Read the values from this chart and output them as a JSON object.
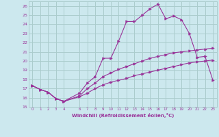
{
  "xlabel": "Windchill (Refroidissement éolien,°C)",
  "background_color": "#cce8ee",
  "grid_color": "#aacccc",
  "line_color": "#993399",
  "xlim": [
    -0.5,
    23.5
  ],
  "ylim": [
    15,
    26.5
  ],
  "xticks": [
    0,
    1,
    2,
    3,
    4,
    6,
    7,
    8,
    9,
    10,
    11,
    12,
    13,
    14,
    15,
    16,
    17,
    18,
    19,
    20,
    21,
    22,
    23
  ],
  "yticks": [
    15,
    16,
    17,
    18,
    19,
    20,
    21,
    22,
    23,
    24,
    25,
    26
  ],
  "line1_x": [
    0,
    1,
    2,
    3,
    4,
    6,
    7,
    8,
    9,
    10,
    11,
    12,
    13,
    14,
    15,
    16,
    17,
    18,
    19,
    20,
    21,
    22,
    23
  ],
  "line1_y": [
    17.3,
    16.9,
    16.6,
    15.9,
    15.6,
    16.1,
    16.5,
    17.0,
    17.4,
    17.7,
    17.9,
    18.1,
    18.4,
    18.6,
    18.8,
    19.0,
    19.2,
    19.4,
    19.6,
    19.8,
    19.9,
    20.0,
    20.1
  ],
  "line2_x": [
    0,
    1,
    2,
    3,
    4,
    6,
    7,
    8,
    9,
    10,
    11,
    12,
    13,
    14,
    15,
    16,
    17,
    18,
    19,
    20,
    21,
    22,
    23
  ],
  "line2_y": [
    17.3,
    16.9,
    16.6,
    15.9,
    15.6,
    16.5,
    17.6,
    18.3,
    20.3,
    20.3,
    22.2,
    24.3,
    24.3,
    25.0,
    25.7,
    26.2,
    24.6,
    24.9,
    24.5,
    23.0,
    20.4,
    20.5,
    17.9
  ],
  "line3_x": [
    0,
    1,
    2,
    3,
    4,
    6,
    7,
    8,
    9,
    10,
    11,
    12,
    13,
    14,
    15,
    16,
    17,
    18,
    19,
    20,
    21,
    22,
    23
  ],
  "line3_y": [
    17.3,
    16.9,
    16.6,
    15.9,
    15.6,
    16.2,
    17.0,
    17.6,
    18.3,
    18.7,
    19.1,
    19.4,
    19.7,
    20.0,
    20.3,
    20.5,
    20.7,
    20.9,
    21.0,
    21.1,
    21.2,
    21.3,
    21.4
  ]
}
